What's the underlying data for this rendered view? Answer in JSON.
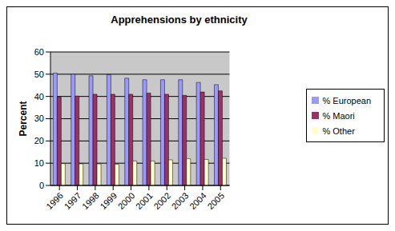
{
  "chart_data": {
    "type": "bar",
    "title": "Apprehensions by ethnicity",
    "y_label": "Percent",
    "categories": [
      "1996",
      "1997",
      "1998",
      "1999",
      "2000",
      "2001",
      "2002",
      "2003",
      "2004",
      "2005"
    ],
    "series": [
      {
        "name": "% European",
        "color": "#9999ff",
        "values": [
          50.5,
          50,
          49.3,
          49.8,
          48.2,
          47.5,
          47.5,
          47.5,
          46.3,
          45.3
        ]
      },
      {
        "name": "% Maori",
        "color": "#993366",
        "values": [
          39.7,
          40.2,
          41,
          41,
          41,
          41.5,
          41,
          40.5,
          42,
          42.5
        ]
      },
      {
        "name": "% Other",
        "color": "#ffffcc",
        "values": [
          9.8,
          9.7,
          9.7,
          9.5,
          11,
          11,
          11.5,
          12,
          11.7,
          12.2
        ]
      }
    ],
    "ylim": [
      0,
      60
    ],
    "yticks": [
      0,
      10,
      20,
      30,
      40,
      50,
      60
    ],
    "grid": true,
    "legend": "right"
  }
}
